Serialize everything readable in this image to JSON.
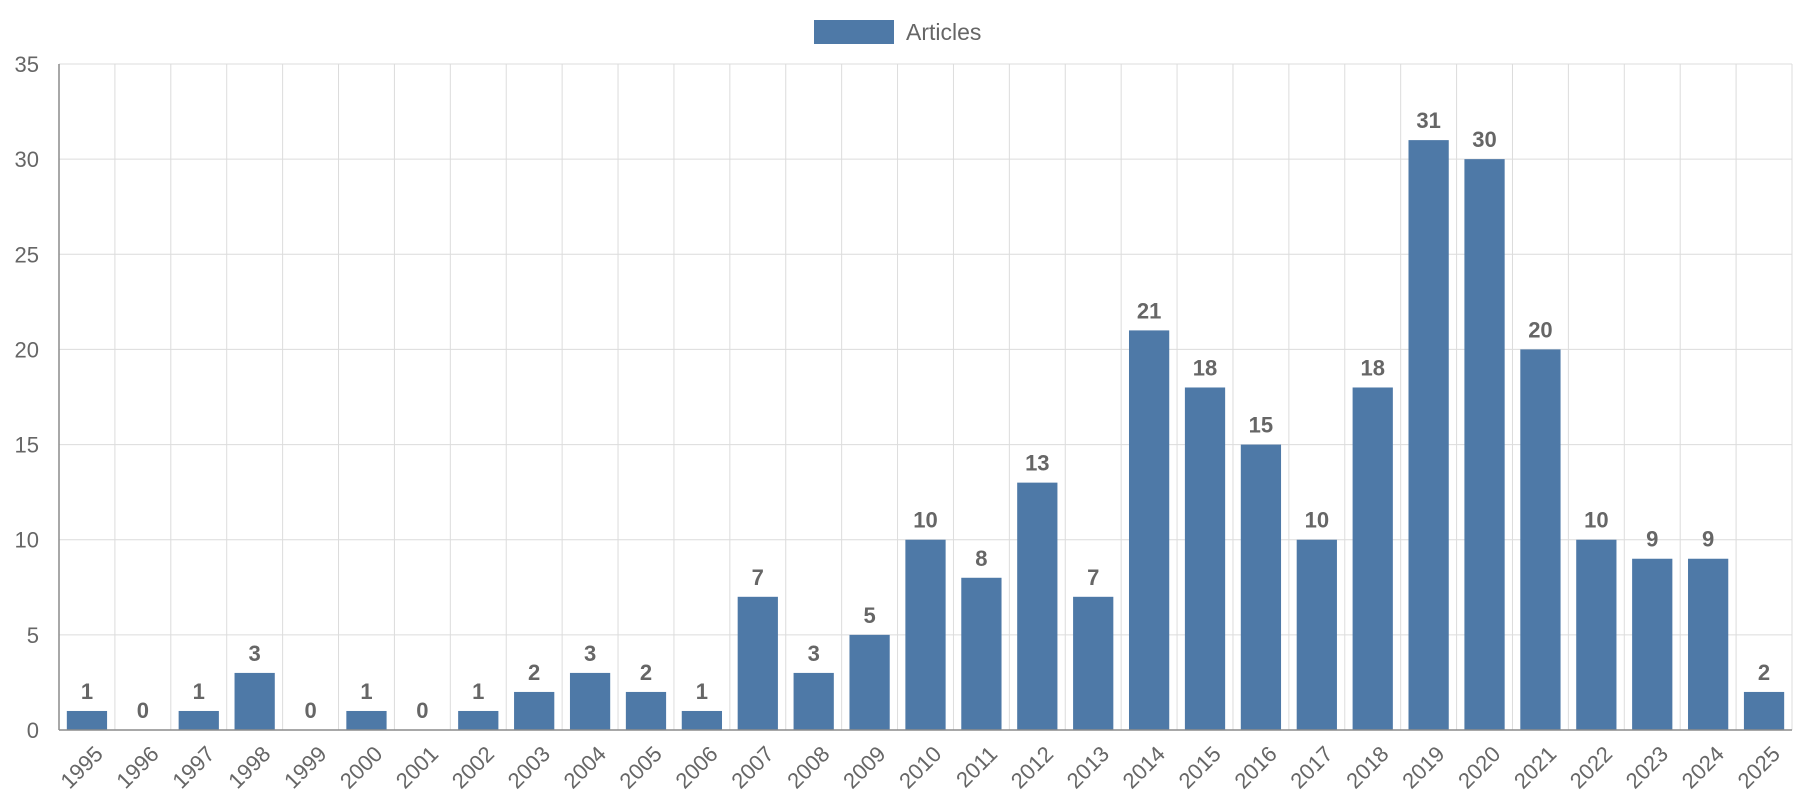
{
  "chart_data": {
    "type": "bar",
    "title": "",
    "xlabel": "",
    "ylabel": "",
    "categories": [
      "1995",
      "1996",
      "1997",
      "1998",
      "1999",
      "2000",
      "2001",
      "2002",
      "2003",
      "2004",
      "2005",
      "2006",
      "2007",
      "2008",
      "2009",
      "2010",
      "2011",
      "2012",
      "2013",
      "2014",
      "2015",
      "2016",
      "2017",
      "2018",
      "2019",
      "2020",
      "2021",
      "2022",
      "2023",
      "2024",
      "2025"
    ],
    "series": [
      {
        "name": "Articles",
        "color": "#4e79a7",
        "values": [
          1,
          0,
          1,
          3,
          0,
          1,
          0,
          1,
          2,
          3,
          2,
          1,
          7,
          3,
          5,
          10,
          8,
          13,
          7,
          21,
          18,
          15,
          10,
          18,
          31,
          30,
          20,
          10,
          9,
          9,
          2
        ]
      }
    ],
    "ylim": [
      0,
      35
    ],
    "yticks": [
      0,
      5,
      10,
      15,
      20,
      25,
      30,
      35
    ],
    "grid": true,
    "legend_position": "top-center",
    "data_labels": true
  }
}
